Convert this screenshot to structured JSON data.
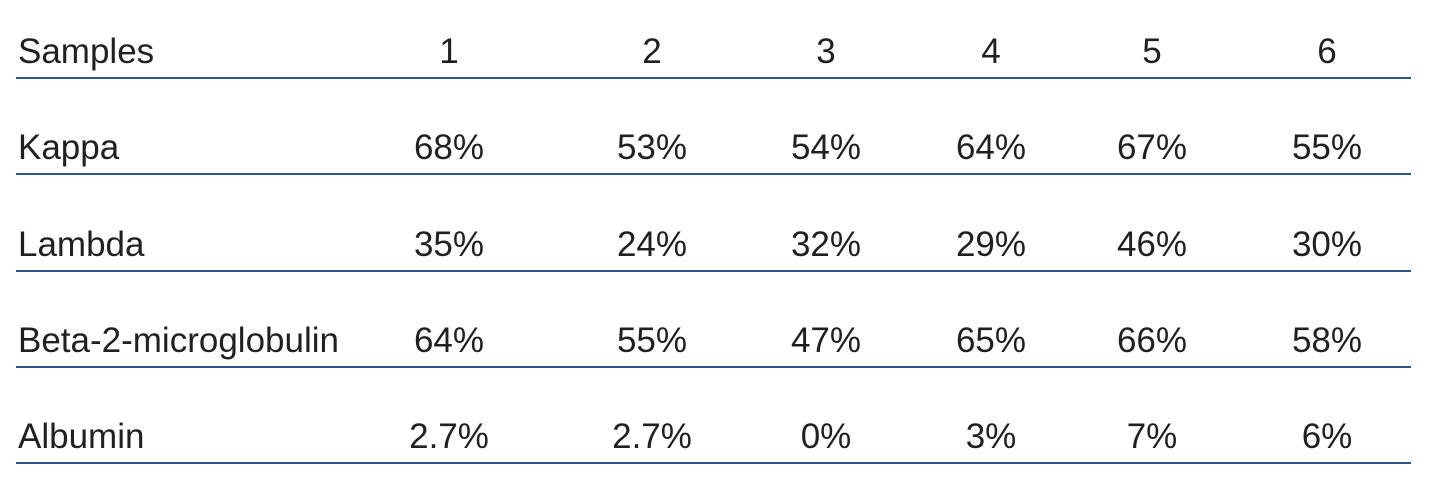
{
  "table": {
    "header": [
      "Samples",
      "1",
      "2",
      "3",
      "4",
      "5",
      "6"
    ],
    "rows": [
      [
        "Kappa",
        "68%",
        "53%",
        "54%",
        "64%",
        "67%",
        "55%"
      ],
      [
        "Lambda",
        "35%",
        "24%",
        "32%",
        "29%",
        "46%",
        "30%"
      ],
      [
        "Beta-2-microglobulin",
        "64%",
        "55%",
        "47%",
        "65%",
        "66%",
        "58%"
      ],
      [
        "Albumin",
        "2.7%",
        "2.7%",
        "0%",
        "3%",
        "7%",
        "6%"
      ]
    ]
  }
}
